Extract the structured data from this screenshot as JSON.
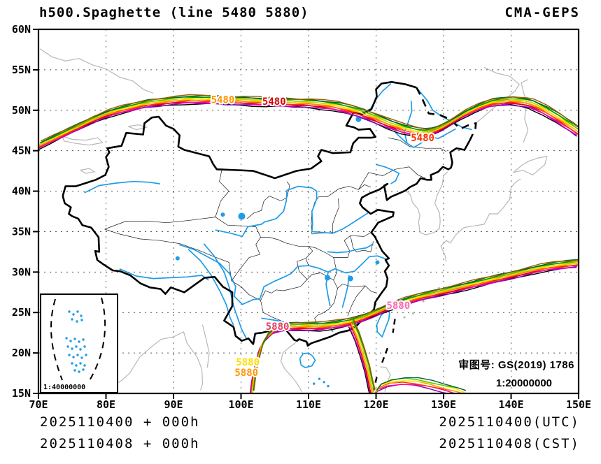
{
  "header": {
    "title": "h500.Spaghette (line 5480 5880)",
    "model": "CMA-GEPS"
  },
  "annotations": {
    "license_label": "审图号: GS(2019) 1786",
    "scale_main": "1:20000000",
    "scale_inset": "1:40000000"
  },
  "footer": {
    "init_left_utc": "2025110400 + 000h",
    "init_left_cst": "2025110408 + 000h",
    "right_utc": "2025110400(UTC)",
    "right_cst": "2025110408(CST)"
  },
  "chart_data": {
    "type": "line",
    "title": "h500.Spaghette (line 5480 5880)",
    "model": "CMA-GEPS",
    "levels": [
      5480,
      5880
    ],
    "lon_range": [
      70,
      150
    ],
    "lat_range": [
      15,
      60
    ],
    "grid": {
      "lon_step": 10,
      "lat_step": 5,
      "style": "dashed"
    },
    "x_ticks": [
      {
        "lon": 70,
        "label": "70E"
      },
      {
        "lon": 80,
        "label": "80E"
      },
      {
        "lon": 90,
        "label": "90E"
      },
      {
        "lon": 100,
        "label": "100E"
      },
      {
        "lon": 110,
        "label": "110E"
      },
      {
        "lon": 120,
        "label": "120E"
      },
      {
        "lon": 130,
        "label": "130E"
      },
      {
        "lon": 140,
        "label": "140E"
      },
      {
        "lon": 150,
        "label": "150E"
      }
    ],
    "y_ticks": [
      {
        "lat": 15,
        "label": "15N"
      },
      {
        "lat": 20,
        "label": "20N"
      },
      {
        "lat": 25,
        "label": "25N"
      },
      {
        "lat": 30,
        "label": "30N"
      },
      {
        "lat": 35,
        "label": "35N"
      },
      {
        "lat": 40,
        "label": "40N"
      },
      {
        "lat": 45,
        "label": "45N"
      },
      {
        "lat": 50,
        "label": "50N"
      },
      {
        "lat": 55,
        "label": "55N"
      },
      {
        "lat": 60,
        "label": "60N"
      }
    ],
    "ensemble_colors": [
      "#000000",
      "#7b00b4",
      "#c800c8",
      "#ff0096",
      "#dc0000",
      "#ff3200",
      "#ff6e00",
      "#ff9600",
      "#ffc800",
      "#ffe600",
      "#b4dc00",
      "#50c800",
      "#009600",
      "#006432",
      "#a05a00"
    ],
    "contours": [
      {
        "level": 5480,
        "members": "all",
        "points": [
          [
            70,
            45.6
          ],
          [
            72,
            46.4
          ],
          [
            74,
            47.2
          ],
          [
            76,
            48.0
          ],
          [
            78,
            48.8
          ],
          [
            80,
            49.5
          ],
          [
            82,
            50.0
          ],
          [
            84,
            50.4
          ],
          [
            86,
            50.8
          ],
          [
            88,
            51.0
          ],
          [
            90,
            51.2
          ],
          [
            92,
            51.3
          ],
          [
            94,
            51.3
          ],
          [
            96,
            51.3
          ],
          [
            98,
            51.2
          ],
          [
            100,
            51.2
          ],
          [
            102,
            51.1
          ],
          [
            104,
            51.0
          ],
          [
            106,
            51.0
          ],
          [
            108,
            50.9
          ],
          [
            110,
            50.9
          ],
          [
            112,
            50.7
          ],
          [
            114,
            50.5
          ],
          [
            116,
            50.1
          ],
          [
            118,
            49.6
          ],
          [
            120,
            49.0
          ],
          [
            122,
            48.3
          ],
          [
            124,
            47.7
          ],
          [
            126,
            47.3
          ],
          [
            127,
            47.2
          ],
          [
            128,
            47.3
          ],
          [
            129,
            47.6
          ],
          [
            130,
            48.0
          ],
          [
            131,
            48.5
          ],
          [
            132,
            49.0
          ],
          [
            133,
            49.5
          ],
          [
            134,
            49.9
          ],
          [
            135,
            50.3
          ],
          [
            136,
            50.6
          ],
          [
            137,
            50.9
          ],
          [
            138,
            51.0
          ],
          [
            139,
            51.1
          ],
          [
            140,
            51.2
          ],
          [
            141,
            51.1
          ],
          [
            142,
            51.0
          ],
          [
            143,
            50.8
          ],
          [
            144,
            50.4
          ],
          [
            145,
            50.0
          ],
          [
            146,
            49.5
          ],
          [
            147,
            49.0
          ],
          [
            148,
            48.4
          ],
          [
            149,
            47.9
          ],
          [
            150,
            47.3
          ]
        ]
      },
      {
        "level": 5880,
        "members": "all",
        "points": [
          [
            101.6,
            15.0
          ],
          [
            101.9,
            17.0
          ],
          [
            102.4,
            19.0
          ],
          [
            103.0,
            20.8
          ],
          [
            103.8,
            22.0
          ],
          [
            105.0,
            22.9
          ],
          [
            106.5,
            23.2
          ],
          [
            108,
            23.3
          ],
          [
            110,
            23.3
          ],
          [
            112,
            23.3
          ],
          [
            114,
            23.5
          ],
          [
            116,
            23.8
          ],
          [
            118,
            24.3
          ],
          [
            120,
            25.0
          ],
          [
            122,
            25.7
          ],
          [
            124,
            26.3
          ],
          [
            126,
            26.8
          ],
          [
            128,
            27.2
          ],
          [
            130,
            27.6
          ],
          [
            132,
            28.0
          ],
          [
            134,
            28.4
          ],
          [
            136,
            28.8
          ],
          [
            138,
            29.2
          ],
          [
            140,
            29.6
          ],
          [
            142,
            30.0
          ],
          [
            144,
            30.4
          ],
          [
            146,
            30.7
          ],
          [
            148,
            30.9
          ],
          [
            150,
            31.1
          ]
        ]
      },
      {
        "level": 5880,
        "members": "even",
        "points": [
          [
            116.3,
            23.7
          ],
          [
            117.2,
            22.0
          ],
          [
            118.0,
            20.0
          ],
          [
            118.7,
            18.0
          ],
          [
            119.2,
            16.0
          ],
          [
            119.5,
            15.0
          ]
        ]
      },
      {
        "level": 5880,
        "members": "odd",
        "points": [
          [
            119.8,
            15.0
          ],
          [
            120.5,
            15.8
          ],
          [
            122,
            16.3
          ],
          [
            124,
            16.5
          ],
          [
            126,
            16.4
          ],
          [
            128,
            16.1
          ],
          [
            130,
            15.7
          ],
          [
            132,
            15.3
          ],
          [
            133,
            15.0
          ]
        ]
      }
    ],
    "contour_labels": [
      {
        "text": "5480",
        "lon": 97.3,
        "lat": 51.3,
        "color": "#ff9600"
      },
      {
        "text": "5480",
        "lon": 104.9,
        "lat": 51.1,
        "color": "#dc0000"
      },
      {
        "text": "5480",
        "lon": 126.9,
        "lat": 46.6,
        "color": "#ff3200"
      },
      {
        "text": "5880",
        "lon": 105.4,
        "lat": 23.3,
        "color": "#e63c64"
      },
      {
        "text": "5880",
        "lon": 123.3,
        "lat": 25.9,
        "color": "#ff69b4"
      },
      {
        "text": "5880",
        "lon": 101.0,
        "lat": 18.9,
        "color": "#ffdc00"
      },
      {
        "text": "5880",
        "lon": 100.8,
        "lat": 17.6,
        "color": "#ff9600"
      }
    ]
  }
}
